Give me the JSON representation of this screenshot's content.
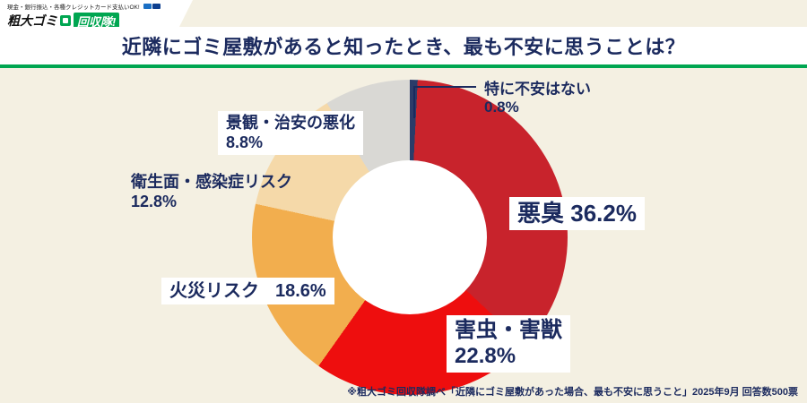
{
  "colors": {
    "bg": "#f4f0e2",
    "navy": "#1b2a5e",
    "green": "#00a651",
    "label-bg": "#ffffff"
  },
  "header": {
    "tagline": "現金・銀行振込・各種クレジットカード支払いOK!",
    "logo_text_1": "粗大ゴミ",
    "logo_text_2": "回収隊!"
  },
  "title": "近隣にゴミ屋敷があると知ったとき、最も不安に思うことは？",
  "chart_data": {
    "type": "pie",
    "donut": true,
    "title": "近隣にゴミ屋敷があると知ったとき、最も不安に思うことは？",
    "start_angle_deg": 0,
    "direction": "clockwise",
    "total": 100,
    "segments": [
      {
        "label": "特に不安はない",
        "value": 0.8,
        "display": "0.8%",
        "color": "#2c3c69"
      },
      {
        "label": "悪臭",
        "value": 36.2,
        "display": "36.2%",
        "color": "#c8232c"
      },
      {
        "label": "害虫・害獣",
        "value": 22.8,
        "display": "22.8%",
        "color": "#ee0e0e"
      },
      {
        "label": "火災リスク",
        "value": 18.6,
        "display": "18.6%",
        "color": "#f2ae4e"
      },
      {
        "label": "衛生面・感染症リスク",
        "value": 12.8,
        "display": "12.8%",
        "color": "#f5d9a9"
      },
      {
        "label": "景観・治安の悪化",
        "value": 8.8,
        "display": "8.8%",
        "color": "#d9d8d4"
      }
    ]
  },
  "footnote": "※粗大ゴミ回収隊調べ「近隣にゴミ屋敷があった場合、最も不安に思うこと」2025年9月 回答数500票"
}
